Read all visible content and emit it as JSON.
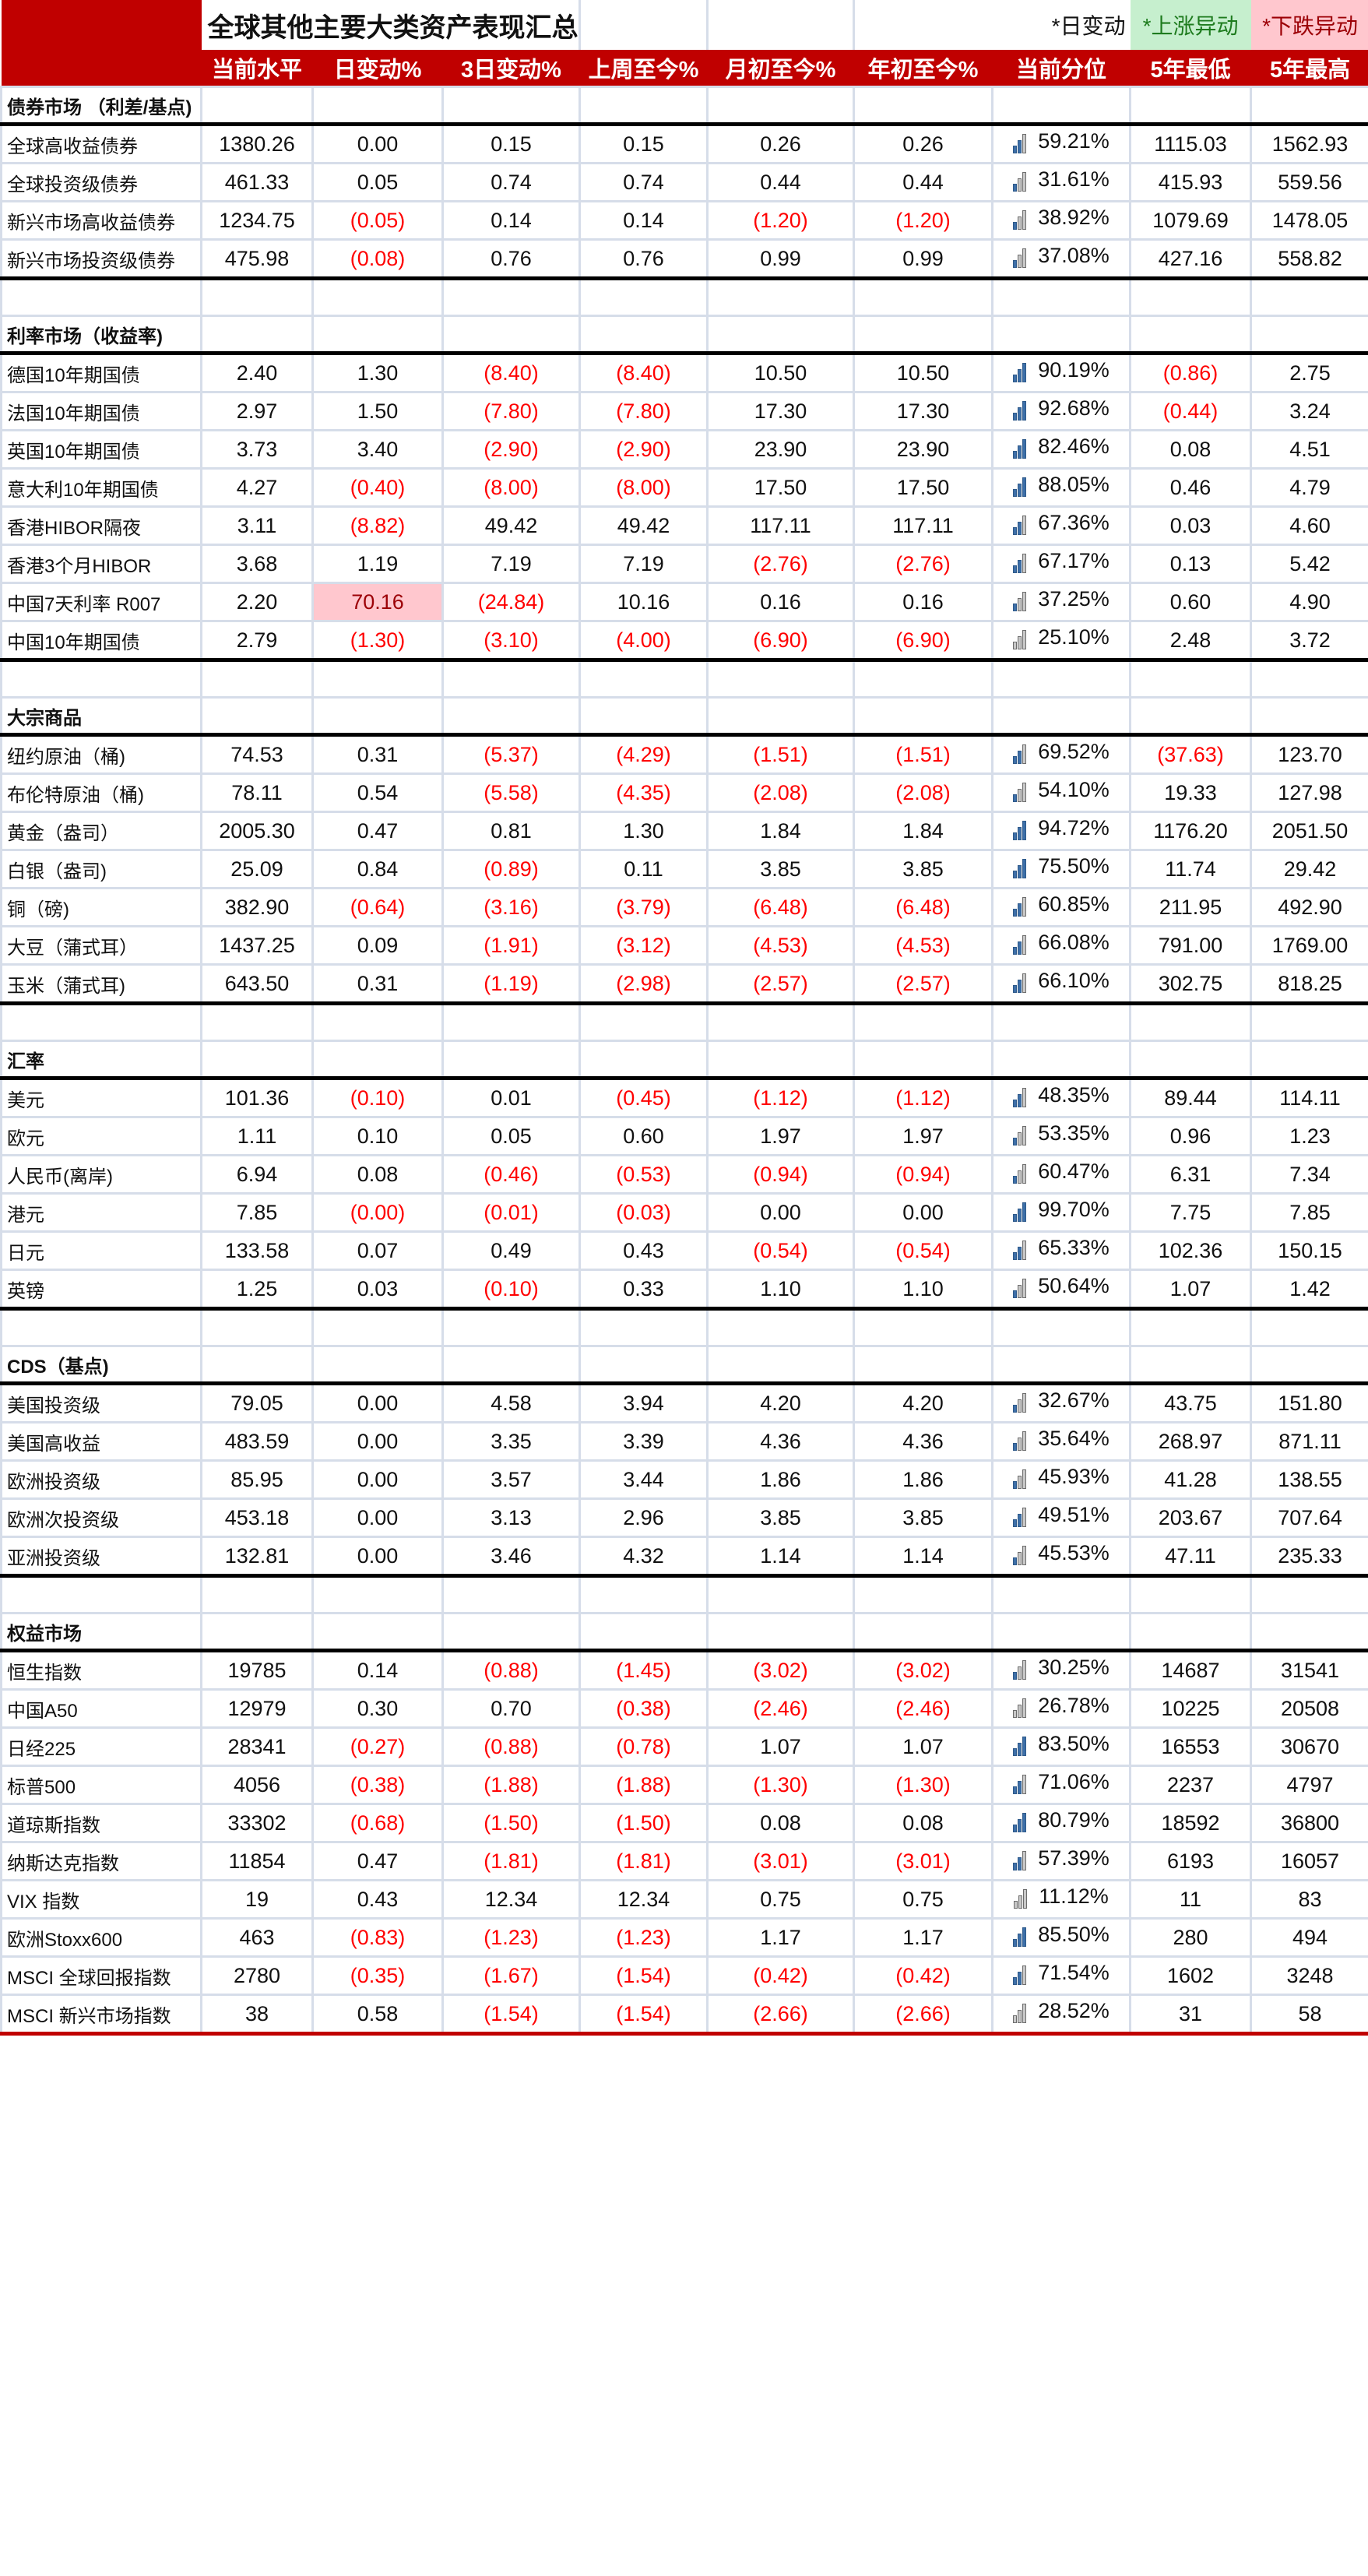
{
  "title": "全球其他主要大类资产表现汇总",
  "legend": {
    "daily": "*日变动",
    "up": "*上涨异动",
    "down": "*下跌异动",
    "up_bg": "#c6efce",
    "down_bg": "#ffc7ce"
  },
  "colors": {
    "header_bg": "#c00000",
    "negative": "#ff0000",
    "bar_on": "#3d6fa8",
    "bar_off": "#c8c8c8"
  },
  "columns": [
    "",
    "当前水平",
    "日变动%",
    "3日变动%",
    "上周至今%",
    "月初至今%",
    "年初至今%",
    "当前分位",
    "5年最低",
    "5年最高"
  ],
  "sections": [
    {
      "name": "债券市场 （利差/基点)",
      "rows": [
        {
          "name": "全球高收益债券",
          "cells": [
            "1380.26",
            "0.00",
            "0.15",
            "0.15",
            "0.26",
            "0.26",
            "59.21%",
            "1115.03",
            "1562.93"
          ],
          "bars": 2
        },
        {
          "name": "全球投资级债券",
          "cells": [
            "461.33",
            "0.05",
            "0.74",
            "0.74",
            "0.44",
            "0.44",
            "31.61%",
            "415.93",
            "559.56"
          ],
          "bars": 1
        },
        {
          "name": "新兴市场高收益债券",
          "cells": [
            "1234.75",
            "(0.05)",
            "0.14",
            "0.14",
            "(1.20)",
            "(1.20)",
            "38.92%",
            "1079.69",
            "1478.05"
          ],
          "bars": 1
        },
        {
          "name": "新兴市场投资级债券",
          "cells": [
            "475.98",
            "(0.08)",
            "0.76",
            "0.76",
            "0.99",
            "0.99",
            "37.08%",
            "427.16",
            "558.82"
          ],
          "bars": 1
        }
      ]
    },
    {
      "name": "利率市场（收益率)",
      "rows": [
        {
          "name": "德国10年期国债",
          "cells": [
            "2.40",
            "1.30",
            "(8.40)",
            "(8.40)",
            "10.50",
            "10.50",
            "90.19%",
            "(0.86)",
            "2.75"
          ],
          "bars": 3
        },
        {
          "name": "法国10年期国债",
          "cells": [
            "2.97",
            "1.50",
            "(7.80)",
            "(7.80)",
            "17.30",
            "17.30",
            "92.68%",
            "(0.44)",
            "3.24"
          ],
          "bars": 3
        },
        {
          "name": "英国10年期国债",
          "cells": [
            "3.73",
            "3.40",
            "(2.90)",
            "(2.90)",
            "23.90",
            "23.90",
            "82.46%",
            "0.08",
            "4.51"
          ],
          "bars": 3
        },
        {
          "name": "意大利10年期国债",
          "cells": [
            "4.27",
            "(0.40)",
            "(8.00)",
            "(8.00)",
            "17.50",
            "17.50",
            "88.05%",
            "0.46",
            "4.79"
          ],
          "bars": 3
        },
        {
          "name": "香港HIBOR隔夜",
          "cells": [
            "3.11",
            "(8.82)",
            "49.42",
            "49.42",
            "117.11",
            "117.11",
            "67.36%",
            "0.03",
            "4.60"
          ],
          "bars": 2
        },
        {
          "name": "香港3个月HIBOR",
          "cells": [
            "3.68",
            "1.19",
            "7.19",
            "7.19",
            "(2.76)",
            "(2.76)",
            "67.17%",
            "0.13",
            "5.42"
          ],
          "bars": 2
        },
        {
          "name": "中国7天利率 R007",
          "cells": [
            "2.20",
            "70.16",
            "(24.84)",
            "10.16",
            "0.16",
            "0.16",
            "37.25%",
            "0.60",
            "4.90"
          ],
          "bars": 1,
          "highlight_col": 1
        },
        {
          "name": "中国10年期国债",
          "cells": [
            "2.79",
            "(1.30)",
            "(3.10)",
            "(4.00)",
            "(6.90)",
            "(6.90)",
            "25.10%",
            "2.48",
            "3.72"
          ],
          "bars": 0
        }
      ]
    },
    {
      "name": "大宗商品",
      "rows": [
        {
          "name": "纽约原油（桶)",
          "cells": [
            "74.53",
            "0.31",
            "(5.37)",
            "(4.29)",
            "(1.51)",
            "(1.51)",
            "69.52%",
            "(37.63)",
            "123.70"
          ],
          "bars": 2
        },
        {
          "name": "布伦特原油（桶)",
          "cells": [
            "78.11",
            "0.54",
            "(5.58)",
            "(4.35)",
            "(2.08)",
            "(2.08)",
            "54.10%",
            "19.33",
            "127.98"
          ],
          "bars": 1
        },
        {
          "name": "黄金（盎司）",
          "cells": [
            "2005.30",
            "0.47",
            "0.81",
            "1.30",
            "1.84",
            "1.84",
            "94.72%",
            "1176.20",
            "2051.50"
          ],
          "bars": 3
        },
        {
          "name": "白银（盎司)",
          "cells": [
            "25.09",
            "0.84",
            "(0.89)",
            "0.11",
            "3.85",
            "3.85",
            "75.50%",
            "11.74",
            "29.42"
          ],
          "bars": 3
        },
        {
          "name": "铜（磅)",
          "cells": [
            "382.90",
            "(0.64)",
            "(3.16)",
            "(3.79)",
            "(6.48)",
            "(6.48)",
            "60.85%",
            "211.95",
            "492.90"
          ],
          "bars": 2
        },
        {
          "name": "大豆（蒲式耳）",
          "cells": [
            "1437.25",
            "0.09",
            "(1.91)",
            "(3.12)",
            "(4.53)",
            "(4.53)",
            "66.08%",
            "791.00",
            "1769.00"
          ],
          "bars": 2
        },
        {
          "name": "玉米（蒲式耳)",
          "cells": [
            "643.50",
            "0.31",
            "(1.19)",
            "(2.98)",
            "(2.57)",
            "(2.57)",
            "66.10%",
            "302.75",
            "818.25"
          ],
          "bars": 2
        }
      ]
    },
    {
      "name": "汇率",
      "rows": [
        {
          "name": "美元",
          "cells": [
            "101.36",
            "(0.10)",
            "0.01",
            "(0.45)",
            "(1.12)",
            "(1.12)",
            "48.35%",
            "89.44",
            "114.11"
          ],
          "bars": 2
        },
        {
          "name": "欧元",
          "cells": [
            "1.11",
            "0.10",
            "0.05",
            "0.60",
            "1.97",
            "1.97",
            "53.35%",
            "0.96",
            "1.23"
          ],
          "bars": 1
        },
        {
          "name": "人民币(离岸)",
          "cells": [
            "6.94",
            "0.08",
            "(0.46)",
            "(0.53)",
            "(0.94)",
            "(0.94)",
            "60.47%",
            "6.31",
            "7.34"
          ],
          "bars": 1
        },
        {
          "name": "港元",
          "cells": [
            "7.85",
            "(0.00)",
            "(0.01)",
            "(0.03)",
            "0.00",
            "0.00",
            "99.70%",
            "7.75",
            "7.85"
          ],
          "bars": 3
        },
        {
          "name": "日元",
          "cells": [
            "133.58",
            "0.07",
            "0.49",
            "0.43",
            "(0.54)",
            "(0.54)",
            "65.33%",
            "102.36",
            "150.15"
          ],
          "bars": 2
        },
        {
          "name": "英镑",
          "cells": [
            "1.25",
            "0.03",
            "(0.10)",
            "0.33",
            "1.10",
            "1.10",
            "50.64%",
            "1.07",
            "1.42"
          ],
          "bars": 1
        }
      ]
    },
    {
      "name": "CDS（基点)",
      "rows": [
        {
          "name": "美国投资级",
          "cells": [
            "79.05",
            "0.00",
            "4.58",
            "3.94",
            "4.20",
            "4.20",
            "32.67%",
            "43.75",
            "151.80"
          ],
          "bars": 1
        },
        {
          "name": "美国高收益",
          "cells": [
            "483.59",
            "0.00",
            "3.35",
            "3.39",
            "4.36",
            "4.36",
            "35.64%",
            "268.97",
            "871.11"
          ],
          "bars": 1
        },
        {
          "name": "欧洲投资级",
          "cells": [
            "85.95",
            "0.00",
            "3.57",
            "3.44",
            "1.86",
            "1.86",
            "45.93%",
            "41.28",
            "138.55"
          ],
          "bars": 1
        },
        {
          "name": "欧洲次投资级",
          "cells": [
            "453.18",
            "0.00",
            "3.13",
            "2.96",
            "3.85",
            "3.85",
            "49.51%",
            "203.67",
            "707.64"
          ],
          "bars": 2
        },
        {
          "name": "亚洲投资级",
          "cells": [
            "132.81",
            "0.00",
            "3.46",
            "4.32",
            "1.14",
            "1.14",
            "45.53%",
            "47.11",
            "235.33"
          ],
          "bars": 1
        }
      ]
    },
    {
      "name": "权益市场",
      "rows": [
        {
          "name": "恒生指数",
          "cells": [
            "19785",
            "0.14",
            "(0.88)",
            "(1.45)",
            "(3.02)",
            "(3.02)",
            "30.25%",
            "14687",
            "31541"
          ],
          "bars": 1
        },
        {
          "name": "中国A50",
          "cells": [
            "12979",
            "0.30",
            "0.70",
            "(0.38)",
            "(2.46)",
            "(2.46)",
            "26.78%",
            "10225",
            "20508"
          ],
          "bars": 0
        },
        {
          "name": "日经225",
          "cells": [
            "28341",
            "(0.27)",
            "(0.88)",
            "(0.78)",
            "1.07",
            "1.07",
            "83.50%",
            "16553",
            "30670"
          ],
          "bars": 3
        },
        {
          "name": "标普500",
          "cells": [
            "4056",
            "(0.38)",
            "(1.88)",
            "(1.88)",
            "(1.30)",
            "(1.30)",
            "71.06%",
            "2237",
            "4797"
          ],
          "bars": 2
        },
        {
          "name": "道琼斯指数",
          "cells": [
            "33302",
            "(0.68)",
            "(1.50)",
            "(1.50)",
            "0.08",
            "0.08",
            "80.79%",
            "18592",
            "36800"
          ],
          "bars": 3
        },
        {
          "name": "纳斯达克指数",
          "cells": [
            "11854",
            "0.47",
            "(1.81)",
            "(1.81)",
            "(3.01)",
            "(3.01)",
            "57.39%",
            "6193",
            "16057"
          ],
          "bars": 2
        },
        {
          "name": "VIX 指数",
          "cells": [
            "19",
            "0.43",
            "12.34",
            "12.34",
            "0.75",
            "0.75",
            "11.12%",
            "11",
            "83"
          ],
          "bars": 0
        },
        {
          "name": "欧洲Stoxx600",
          "cells": [
            "463",
            "(0.83)",
            "(1.23)",
            "(1.23)",
            "1.17",
            "1.17",
            "85.50%",
            "280",
            "494"
          ],
          "bars": 3
        },
        {
          "name": "MSCI 全球回报指数",
          "cells": [
            "2780",
            "(0.35)",
            "(1.67)",
            "(1.54)",
            "(0.42)",
            "(0.42)",
            "71.54%",
            "1602",
            "3248"
          ],
          "bars": 2
        },
        {
          "name": "MSCI 新兴市场指数",
          "cells": [
            "38",
            "0.58",
            "(1.54)",
            "(1.54)",
            "(2.66)",
            "(2.66)",
            "28.52%",
            "31",
            "58"
          ],
          "bars": 0
        }
      ]
    }
  ]
}
